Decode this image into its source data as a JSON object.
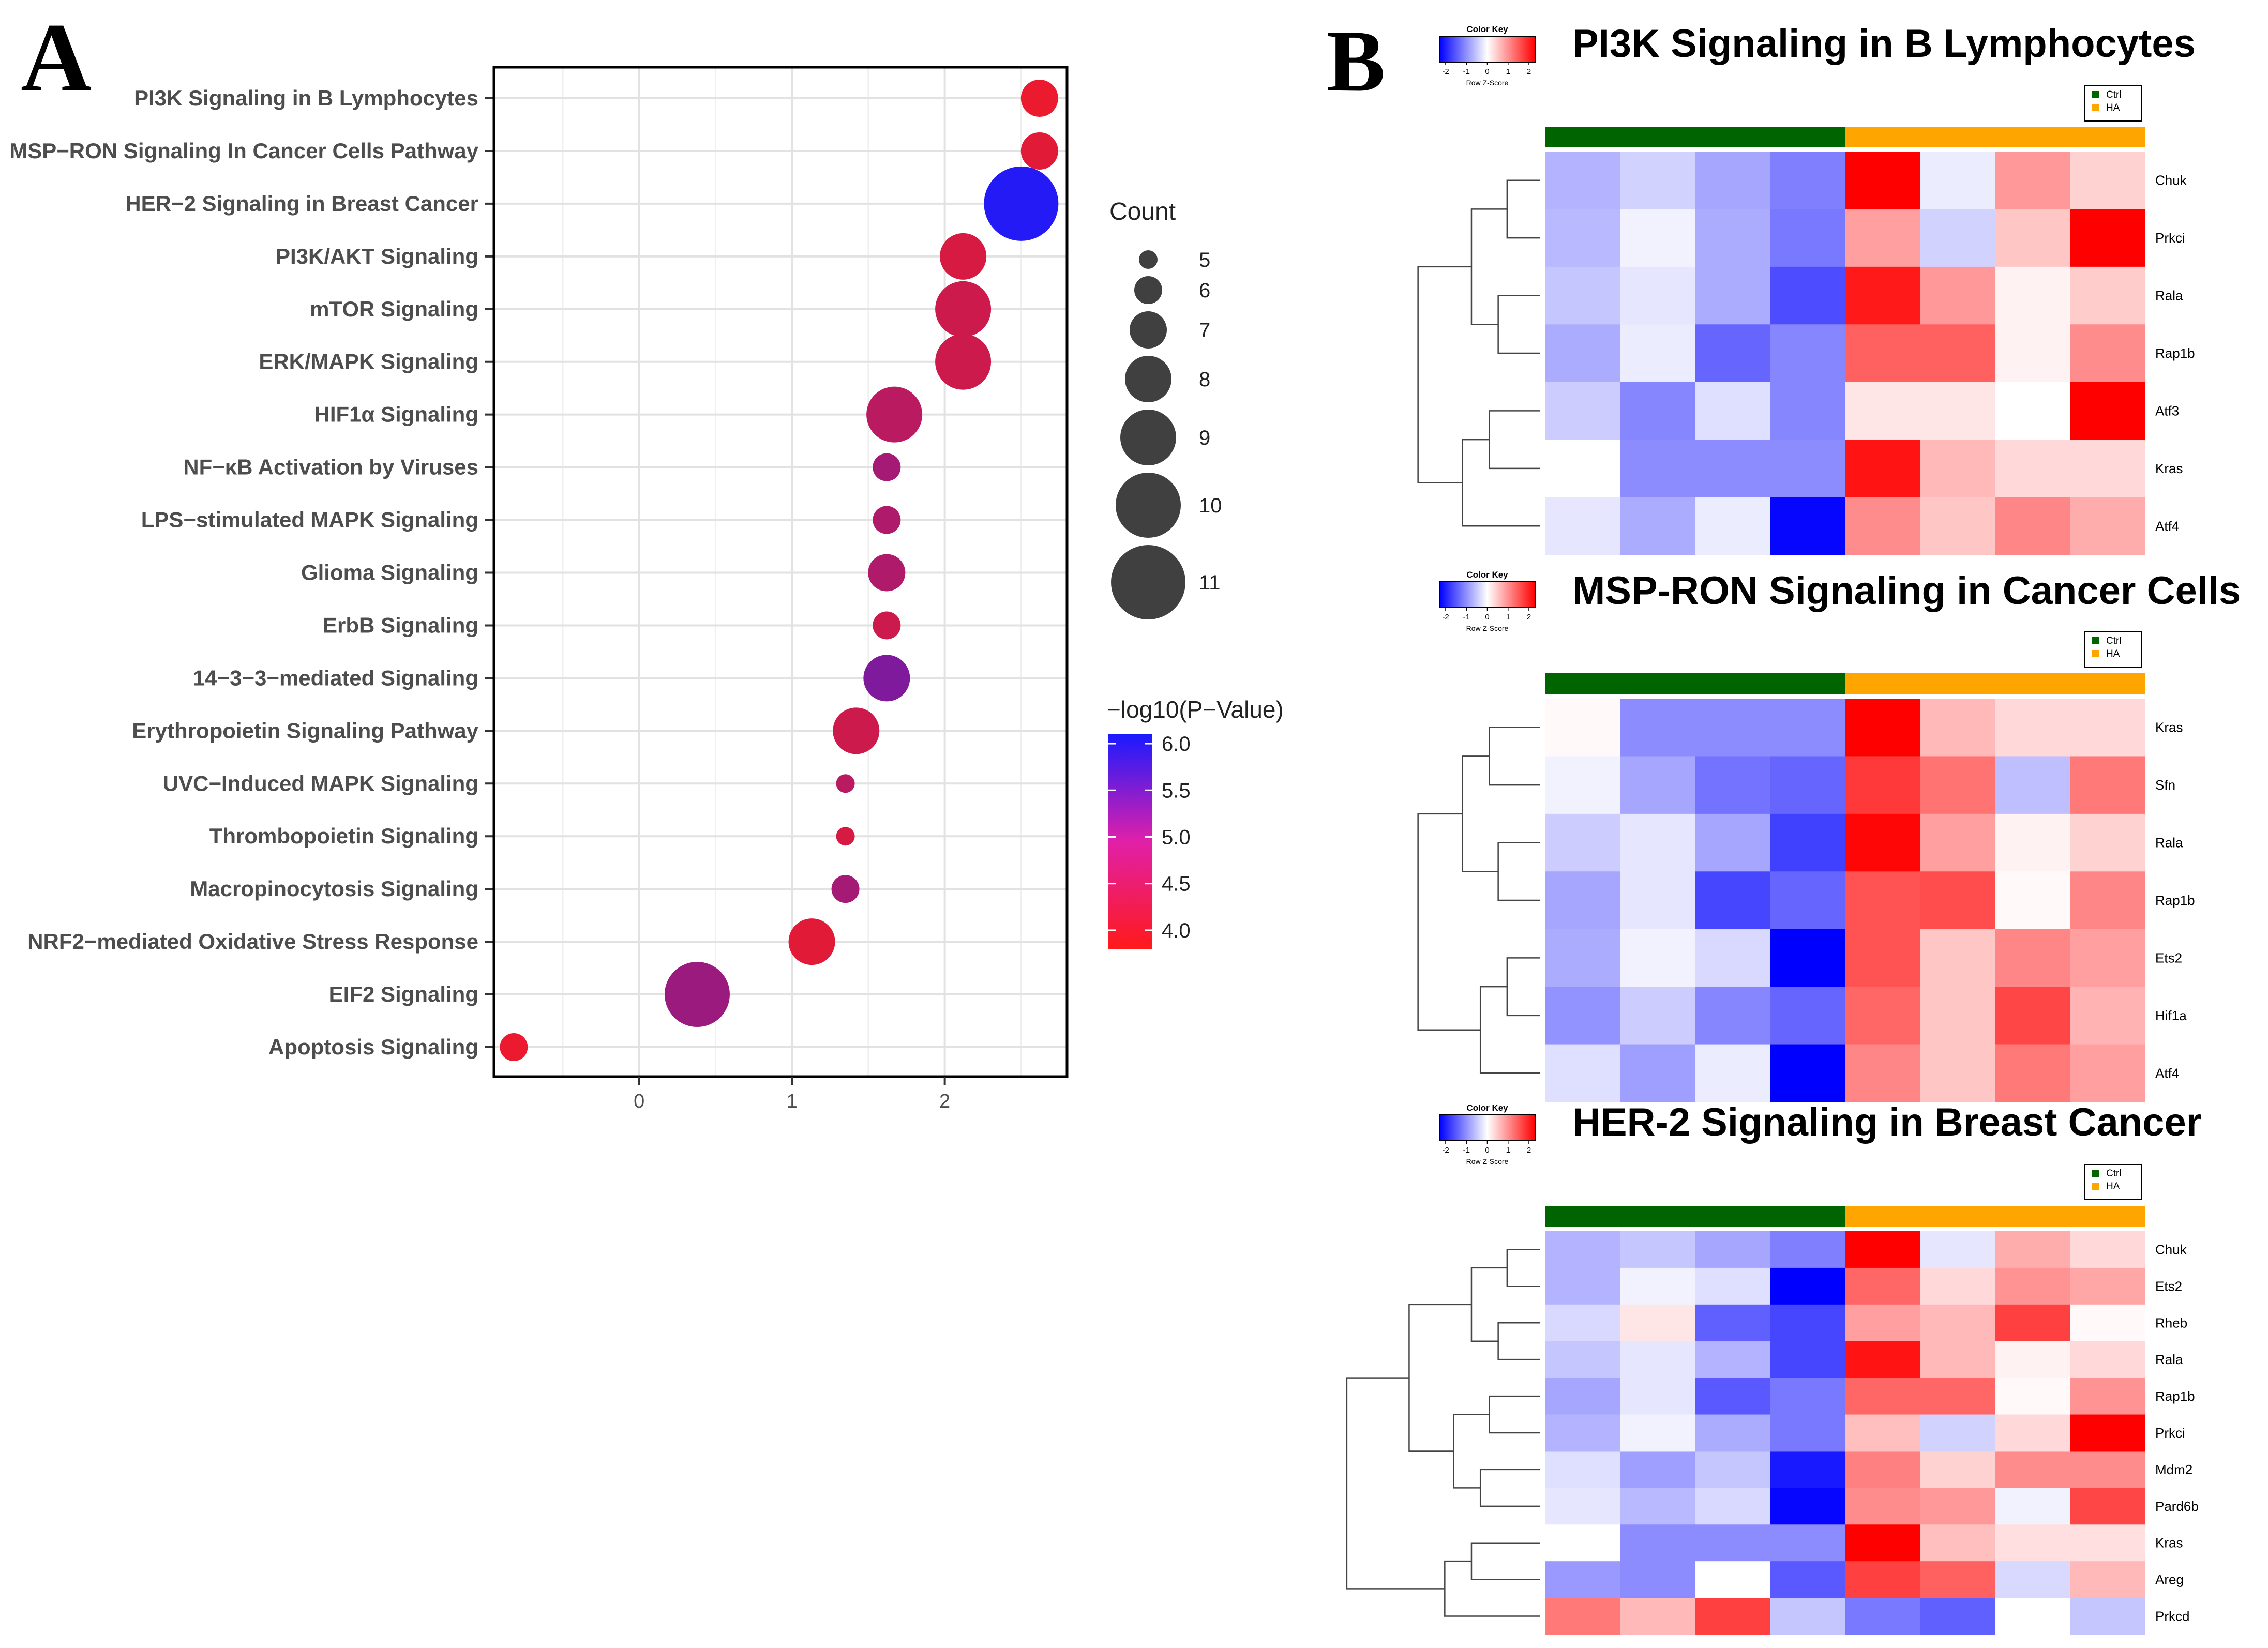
{
  "chart_data": [
    {
      "panel": "A",
      "type": "scatter",
      "subtype": "bubble-dotplot",
      "x_ticks": [
        0,
        1,
        2
      ],
      "xlim": [
        -0.95,
        2.8
      ],
      "pathways": [
        {
          "label": "PI3K Signaling in B Lymphocytes",
          "x": 2.62,
          "count": 7,
          "neglog10p": 4.0
        },
        {
          "label": "MSP−RON Signaling In Cancer Cells Pathway",
          "x": 2.62,
          "count": 7,
          "neglog10p": 4.1
        },
        {
          "label": "HER−2 Signaling in Breast Cancer",
          "x": 2.5,
          "count": 11,
          "neglog10p": 6.0
        },
        {
          "label": "PI3K/AKT Signaling",
          "x": 2.12,
          "count": 8,
          "neglog10p": 4.2
        },
        {
          "label": "mTOR Signaling",
          "x": 2.12,
          "count": 9,
          "neglog10p": 4.3
        },
        {
          "label": "ERK/MAPK Signaling",
          "x": 2.12,
          "count": 9,
          "neglog10p": 4.3
        },
        {
          "label": "HIF1α Signaling",
          "x": 1.67,
          "count": 9,
          "neglog10p": 4.5
        },
        {
          "label": "NF−κB Activation by Viruses",
          "x": 1.62,
          "count": 6,
          "neglog10p": 4.7
        },
        {
          "label": "LPS−stimulated MAPK Signaling",
          "x": 1.62,
          "count": 6,
          "neglog10p": 4.6
        },
        {
          "label": "Glioma Signaling",
          "x": 1.62,
          "count": 7,
          "neglog10p": 4.6
        },
        {
          "label": "ErbB Signaling",
          "x": 1.62,
          "count": 6,
          "neglog10p": 4.3
        },
        {
          "label": "14−3−3−mediated Signaling",
          "x": 1.62,
          "count": 8,
          "neglog10p": 5.1
        },
        {
          "label": "Erythropoietin Signaling Pathway",
          "x": 1.42,
          "count": 8,
          "neglog10p": 4.3
        },
        {
          "label": "UVC−Induced MAPK Signaling",
          "x": 1.35,
          "count": 5,
          "neglog10p": 4.5
        },
        {
          "label": "Thrombopoietin Signaling",
          "x": 1.35,
          "count": 5,
          "neglog10p": 4.2
        },
        {
          "label": "Macropinocytosis Signaling",
          "x": 1.35,
          "count": 6,
          "neglog10p": 4.7
        },
        {
          "label": "NRF2−mediated Oxidative Stress Response",
          "x": 1.13,
          "count": 8,
          "neglog10p": 4.1
        },
        {
          "label": "EIF2 Signaling",
          "x": 0.38,
          "count": 10,
          "neglog10p": 4.8
        },
        {
          "label": "Apoptosis Signaling",
          "x": -0.82,
          "count": 6,
          "neglog10p": 4.0
        }
      ],
      "legend_count": {
        "title": "Count",
        "values": [
          5,
          6,
          7,
          8,
          9,
          10,
          11
        ]
      },
      "legend_color": {
        "title": "−log10(P−Value)",
        "ticks": [
          "6.0",
          "5.5",
          "5.0",
          "4.5",
          "4.0"
        ],
        "range": [
          3.8,
          6.1
        ],
        "low_color": "#ff1a1a",
        "high_color": "#1a1aff"
      }
    },
    {
      "panel": "B",
      "type": "heatmap",
      "color_key": {
        "title": "Color Key",
        "ticks": [
          "-2",
          "-1",
          "0",
          "1",
          "2"
        ],
        "subtitle": "Row Z-Score"
      },
      "groups": [
        {
          "name": "Ctrl",
          "color": "#006400"
        },
        {
          "name": "HA",
          "color": "#ffa500"
        }
      ],
      "heatmaps": [
        {
          "title": "PI3K Signaling in B Lymphocytes",
          "genes": [
            "Chuk",
            "Prkci",
            "Rala",
            "Rap1b",
            "Atf3",
            "Kras",
            "Atf4"
          ],
          "values": [
            [
              -0.6,
              -0.35,
              -0.7,
              -1.0,
              2.0,
              -0.15,
              0.8,
              0.35
            ],
            [
              -0.55,
              -0.1,
              -0.65,
              -1.05,
              0.75,
              -0.35,
              0.45,
              2.0
            ],
            [
              -0.45,
              -0.2,
              -0.65,
              -1.4,
              1.8,
              0.8,
              0.1,
              0.4
            ],
            [
              -0.65,
              -0.15,
              -1.2,
              -0.95,
              1.25,
              1.25,
              0.1,
              0.9
            ],
            [
              -0.4,
              -0.95,
              -0.25,
              -0.95,
              0.2,
              0.2,
              0.0,
              2.0
            ],
            [
              0.0,
              -0.9,
              -0.9,
              -0.9,
              1.85,
              0.55,
              0.3,
              0.3
            ],
            [
              -0.2,
              -0.65,
              -0.15,
              -1.95,
              0.9,
              0.45,
              0.95,
              0.65
            ]
          ]
        },
        {
          "title": "MSP-RON Signaling in Cancer Cells",
          "genes": [
            "Kras",
            "Sfn",
            "Rala",
            "Rap1b",
            "Ets2",
            "Hif1a",
            "Atf4"
          ],
          "values": [
            [
              0.05,
              -0.9,
              -0.9,
              -0.9,
              2.0,
              0.55,
              0.3,
              0.3
            ],
            [
              -0.1,
              -0.7,
              -1.1,
              -1.2,
              1.55,
              1.1,
              -0.5,
              1.05
            ],
            [
              -0.4,
              -0.2,
              -0.7,
              -1.5,
              1.95,
              0.75,
              0.1,
              0.35
            ],
            [
              -0.7,
              -0.2,
              -1.45,
              -1.2,
              1.35,
              1.4,
              0.05,
              0.95
            ],
            [
              -0.65,
              -0.1,
              -0.3,
              -2.0,
              1.35,
              0.45,
              0.95,
              0.75
            ],
            [
              -0.85,
              -0.4,
              -0.95,
              -1.2,
              1.2,
              0.45,
              1.45,
              0.6
            ],
            [
              -0.25,
              -0.75,
              -0.15,
              -2.0,
              0.95,
              0.45,
              1.05,
              0.75
            ]
          ]
        },
        {
          "title": "HER-2 Signaling in Breast Cancer",
          "genes": [
            "Chuk",
            "Ets2",
            "Rheb",
            "Rala",
            "Rap1b",
            "Prkci",
            "Mdm2",
            "Pard6b",
            "Kras",
            "Areg",
            "Prkcd"
          ],
          "values": [
            [
              -0.6,
              -0.45,
              -0.7,
              -1.0,
              2.0,
              -0.2,
              0.65,
              0.3
            ],
            [
              -0.6,
              -0.1,
              -0.25,
              -2.0,
              1.2,
              0.3,
              0.85,
              0.7
            ],
            [
              -0.3,
              0.2,
              -1.25,
              -1.45,
              0.75,
              0.55,
              1.5,
              0.05
            ],
            [
              -0.45,
              -0.2,
              -0.6,
              -1.45,
              1.85,
              0.55,
              0.1,
              0.3
            ],
            [
              -0.7,
              -0.2,
              -1.3,
              -1.05,
              1.2,
              1.2,
              0.05,
              0.85
            ],
            [
              -0.6,
              -0.1,
              -0.65,
              -1.05,
              0.5,
              -0.35,
              0.3,
              2.0
            ],
            [
              -0.25,
              -0.75,
              -0.45,
              -1.8,
              1.0,
              0.35,
              0.9,
              0.9
            ],
            [
              -0.2,
              -0.55,
              -0.3,
              -1.95,
              0.9,
              0.8,
              -0.1,
              1.45
            ],
            [
              0.0,
              -0.9,
              -0.9,
              -0.9,
              2.0,
              0.5,
              0.25,
              0.25
            ],
            [
              -0.8,
              -0.9,
              0.0,
              -1.3,
              1.5,
              1.25,
              -0.3,
              0.55
            ],
            [
              1.05,
              0.55,
              1.5,
              -0.45,
              -1.05,
              -1.25,
              0.0,
              -0.45
            ]
          ]
        }
      ]
    }
  ],
  "panel_labels": {
    "a": "A",
    "b": "B"
  }
}
